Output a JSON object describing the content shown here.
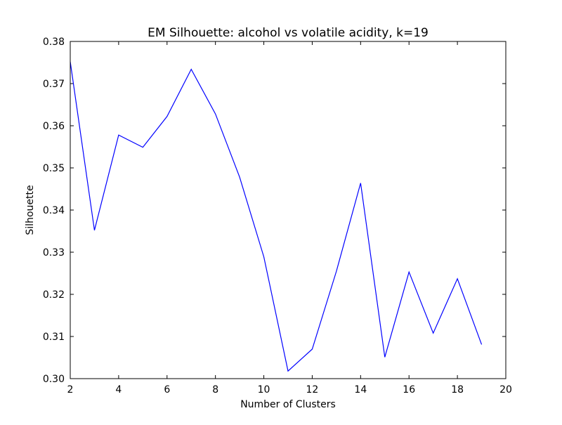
{
  "chart_data": {
    "type": "line",
    "title": "EM Silhouette: alcohol vs volatile acidity, k=19",
    "xlabel": "Number of Clusters",
    "ylabel": "Silhouette",
    "xlim": [
      2,
      20
    ],
    "ylim": [
      0.3,
      0.38
    ],
    "x_ticks": [
      2,
      4,
      6,
      8,
      10,
      12,
      14,
      16,
      18,
      20
    ],
    "x_tick_labels": [
      "2",
      "4",
      "6",
      "8",
      "10",
      "12",
      "14",
      "16",
      "18",
      "20"
    ],
    "y_ticks": [
      0.3,
      0.31,
      0.32,
      0.33,
      0.34,
      0.35,
      0.36,
      0.37,
      0.38
    ],
    "y_tick_labels": [
      "0.30",
      "0.31",
      "0.32",
      "0.33",
      "0.34",
      "0.35",
      "0.36",
      "0.37",
      "0.38"
    ],
    "grid": false,
    "series": [
      {
        "color": "#0000ff",
        "x": [
          2,
          3,
          4,
          5,
          6,
          7,
          8,
          9,
          10,
          11,
          12,
          13,
          14,
          15,
          16,
          17,
          18,
          19
        ],
        "y": [
          0.3752,
          0.3352,
          0.3578,
          0.3549,
          0.3622,
          0.3734,
          0.3628,
          0.3478,
          0.3289,
          0.3018,
          0.307,
          0.3255,
          0.3464,
          0.3051,
          0.3253,
          0.3108,
          0.3237,
          0.3081
        ]
      }
    ]
  }
}
